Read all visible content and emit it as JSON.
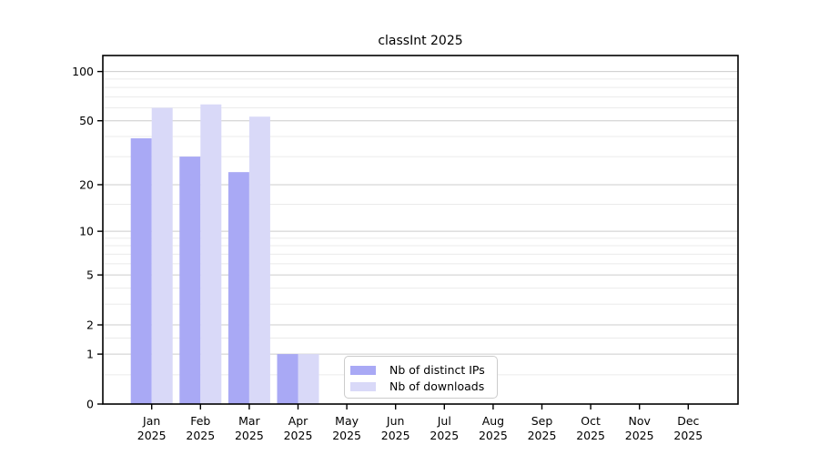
{
  "chart_data": {
    "type": "bar",
    "title": "classInt 2025",
    "categories": [
      "Jan",
      "Feb",
      "Mar",
      "Apr",
      "May",
      "Jun",
      "Jul",
      "Aug",
      "Sep",
      "Oct",
      "Nov",
      "Dec"
    ],
    "x_tick_line2": "2025",
    "series": [
      {
        "name": "Nb of distinct IPs",
        "color": "#a9a9f5",
        "values": [
          39,
          30,
          24,
          1,
          0,
          0,
          0,
          0,
          0,
          0,
          0,
          0
        ]
      },
      {
        "name": "Nb of downloads",
        "color": "#d9d9f8",
        "values": [
          60,
          63,
          53,
          1,
          0,
          0,
          0,
          0,
          0,
          0,
          0,
          0
        ]
      }
    ],
    "y_scale": "log10(value+1)",
    "y_ticks": [
      0,
      1,
      2,
      5,
      10,
      20,
      50,
      100
    ],
    "y_minor_gridlines": [
      0.5,
      1.5,
      3,
      4,
      6,
      7,
      8,
      9,
      15,
      30,
      40,
      60,
      70,
      80,
      90
    ],
    "ylim": [
      0,
      125
    ],
    "grid": true,
    "legend_position": "inside-bottom-center",
    "colors": {
      "axis": "#000000",
      "text": "#000000",
      "grid_major": "#cccccc",
      "grid_minor": "#ebebeb"
    }
  }
}
